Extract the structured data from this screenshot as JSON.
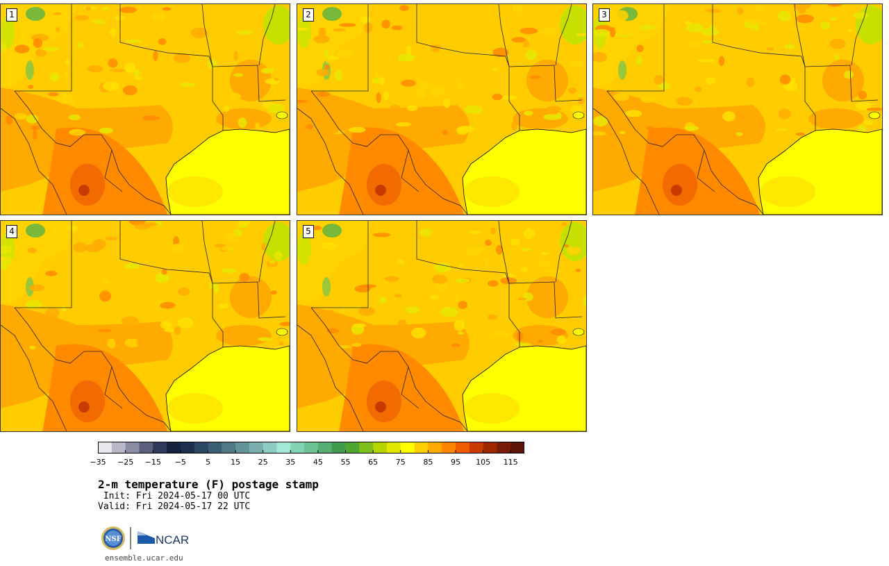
{
  "panels": [
    {
      "label": "1"
    },
    {
      "label": "2"
    },
    {
      "label": "3"
    },
    {
      "label": "4"
    },
    {
      "label": "5"
    }
  ],
  "colorbar": {
    "colors": [
      "#e8e8ee",
      "#b8b8c8",
      "#8c8ca4",
      "#5a607e",
      "#2e3a5c",
      "#16223e",
      "#1c2f4c",
      "#2a4660",
      "#3a5e74",
      "#4f7a86",
      "#63949a",
      "#7aafad",
      "#8ecbc0",
      "#a4e8d8",
      "#82d4b2",
      "#6cc294",
      "#56ae72",
      "#3f9a4e",
      "#4ea630",
      "#7fbf1c",
      "#b4d400",
      "#e4e800",
      "#ffff00",
      "#ffd000",
      "#ffaa00",
      "#ff8400",
      "#f05a00",
      "#c83a00",
      "#a02800",
      "#7a1a08",
      "#5a1408"
    ],
    "tick_labels": [
      "−35",
      "−25",
      "−15",
      "−5",
      "5",
      "15",
      "25",
      "35",
      "45",
      "55",
      "65",
      "75",
      "85",
      "95",
      "105",
      "115"
    ]
  },
  "title": "2-m temperature (F) postage stamp",
  "init": " Init: Fri 2024-05-17 00 UTC",
  "valid": "Valid: Fri 2024-05-17 22 UTC",
  "logo": {
    "nsf": "NSF",
    "ncar": "NCAR"
  },
  "url": "ensemble.ucar.edu"
}
